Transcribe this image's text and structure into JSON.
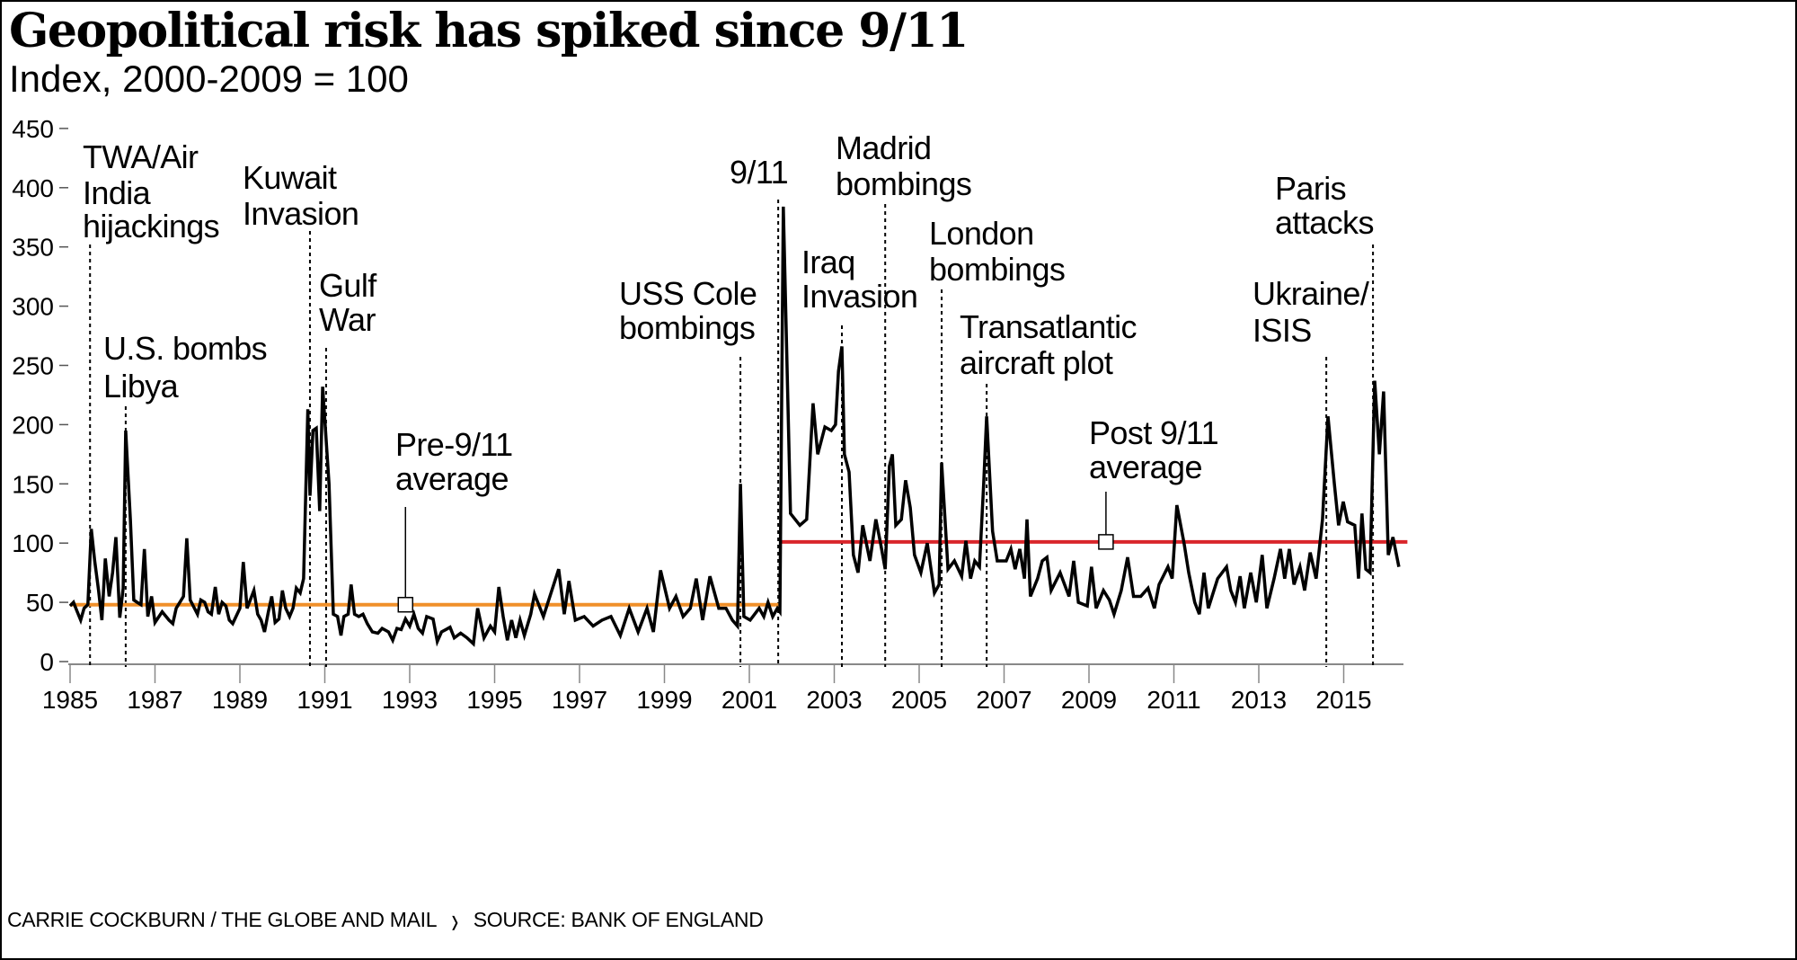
{
  "chart_data": {
    "type": "line",
    "title": "Geopolitical risk has spiked since 9/11",
    "subtitle": "Index, 2000-2009 = 100",
    "xlabel": "",
    "ylabel": "",
    "xlim": [
      1985,
      2016.5
    ],
    "ylim": [
      0,
      450
    ],
    "y_ticks": [
      "450",
      "400",
      "350",
      "300",
      "250",
      "200",
      "150",
      "100",
      "50",
      "0"
    ],
    "x_ticks": [
      "1985",
      "1987",
      "1989",
      "1991",
      "1993",
      "1995",
      "1997",
      "1999",
      "2001",
      "2003",
      "2005",
      "2007",
      "2009",
      "2011",
      "2013",
      "2015"
    ],
    "grid": false,
    "series": [
      {
        "color": "#000000",
        "points": [
          [
            1985.0,
            47
          ],
          [
            1985.08,
            50
          ],
          [
            1985.17,
            42
          ],
          [
            1985.25,
            35
          ],
          [
            1985.33,
            45
          ],
          [
            1985.42,
            48
          ],
          [
            1985.5,
            112
          ],
          [
            1985.58,
            85
          ],
          [
            1985.67,
            60
          ],
          [
            1985.75,
            35
          ],
          [
            1985.83,
            87
          ],
          [
            1985.92,
            55
          ],
          [
            1986.0,
            75
          ],
          [
            1986.08,
            105
          ],
          [
            1986.17,
            37
          ],
          [
            1986.25,
            62
          ],
          [
            1986.31,
            195
          ],
          [
            1986.42,
            120
          ],
          [
            1986.5,
            52
          ],
          [
            1986.58,
            50
          ],
          [
            1986.67,
            48
          ],
          [
            1986.75,
            95
          ],
          [
            1986.83,
            38
          ],
          [
            1986.92,
            55
          ],
          [
            1987.0,
            33
          ],
          [
            1987.17,
            42
          ],
          [
            1987.33,
            35
          ],
          [
            1987.42,
            32
          ],
          [
            1987.5,
            45
          ],
          [
            1987.67,
            55
          ],
          [
            1987.75,
            104
          ],
          [
            1987.83,
            52
          ],
          [
            1988.0,
            40
          ],
          [
            1988.08,
            52
          ],
          [
            1988.17,
            50
          ],
          [
            1988.25,
            42
          ],
          [
            1988.33,
            40
          ],
          [
            1988.42,
            63
          ],
          [
            1988.5,
            40
          ],
          [
            1988.58,
            50
          ],
          [
            1988.67,
            47
          ],
          [
            1988.75,
            35
          ],
          [
            1988.83,
            32
          ],
          [
            1989.0,
            45
          ],
          [
            1989.08,
            84
          ],
          [
            1989.17,
            45
          ],
          [
            1989.33,
            60
          ],
          [
            1989.42,
            40
          ],
          [
            1989.5,
            35
          ],
          [
            1989.58,
            25
          ],
          [
            1989.67,
            42
          ],
          [
            1989.75,
            55
          ],
          [
            1989.83,
            33
          ],
          [
            1989.92,
            36
          ],
          [
            1990.0,
            60
          ],
          [
            1990.08,
            45
          ],
          [
            1990.17,
            38
          ],
          [
            1990.25,
            45
          ],
          [
            1990.33,
            62
          ],
          [
            1990.42,
            58
          ],
          [
            1990.5,
            70
          ],
          [
            1990.6,
            213
          ],
          [
            1990.65,
            140
          ],
          [
            1990.72,
            195
          ],
          [
            1990.8,
            197
          ],
          [
            1990.88,
            127
          ],
          [
            1990.95,
            232
          ],
          [
            1991.1,
            150
          ],
          [
            1991.2,
            40
          ],
          [
            1991.3,
            38
          ],
          [
            1991.38,
            22
          ],
          [
            1991.45,
            38
          ],
          [
            1991.55,
            40
          ],
          [
            1991.62,
            65
          ],
          [
            1991.7,
            40
          ],
          [
            1991.8,
            38
          ],
          [
            1991.9,
            40
          ],
          [
            1992.0,
            32
          ],
          [
            1992.12,
            25
          ],
          [
            1992.25,
            24
          ],
          [
            1992.35,
            28
          ],
          [
            1992.5,
            25
          ],
          [
            1992.6,
            18
          ],
          [
            1992.7,
            28
          ],
          [
            1992.8,
            27
          ],
          [
            1992.9,
            36
          ],
          [
            1993.0,
            30
          ],
          [
            1993.1,
            40
          ],
          [
            1993.2,
            28
          ],
          [
            1993.3,
            24
          ],
          [
            1993.4,
            38
          ],
          [
            1993.55,
            36
          ],
          [
            1993.65,
            17
          ],
          [
            1993.75,
            25
          ],
          [
            1993.85,
            27
          ],
          [
            1993.95,
            29
          ],
          [
            1994.05,
            20
          ],
          [
            1994.2,
            24
          ],
          [
            1994.35,
            20
          ],
          [
            1994.5,
            15
          ],
          [
            1994.6,
            45
          ],
          [
            1994.75,
            20
          ],
          [
            1994.9,
            30
          ],
          [
            1995.0,
            25
          ],
          [
            1995.1,
            63
          ],
          [
            1995.2,
            38
          ],
          [
            1995.3,
            18
          ],
          [
            1995.4,
            35
          ],
          [
            1995.5,
            20
          ],
          [
            1995.6,
            35
          ],
          [
            1995.7,
            22
          ],
          [
            1995.85,
            40
          ],
          [
            1995.94,
            57
          ],
          [
            1996.15,
            38
          ],
          [
            1996.51,
            78
          ],
          [
            1996.64,
            40
          ],
          [
            1996.75,
            68
          ],
          [
            1996.9,
            35
          ],
          [
            1997.11,
            38
          ],
          [
            1997.32,
            30
          ],
          [
            1997.53,
            35
          ],
          [
            1997.74,
            38
          ],
          [
            1997.96,
            22
          ],
          [
            1998.17,
            45
          ],
          [
            1998.38,
            25
          ],
          [
            1998.59,
            45
          ],
          [
            1998.74,
            25
          ],
          [
            1998.91,
            77
          ],
          [
            1999.12,
            45
          ],
          [
            1999.27,
            55
          ],
          [
            1999.44,
            38
          ],
          [
            1999.61,
            45
          ],
          [
            1999.75,
            70
          ],
          [
            1999.9,
            35
          ],
          [
            2000.07,
            72
          ],
          [
            2000.28,
            45
          ],
          [
            2000.45,
            45
          ],
          [
            2000.6,
            35
          ],
          [
            2000.72,
            30
          ],
          [
            2000.79,
            150
          ],
          [
            2000.87,
            38
          ],
          [
            2001.02,
            35
          ],
          [
            2001.23,
            45
          ],
          [
            2001.34,
            38
          ],
          [
            2001.44,
            50
          ],
          [
            2001.55,
            38
          ],
          [
            2001.66,
            45
          ],
          [
            2001.72,
            42
          ],
          [
            2001.8,
            384
          ],
          [
            2001.97,
            125
          ],
          [
            2002.19,
            115
          ],
          [
            2002.35,
            120
          ],
          [
            2002.5,
            218
          ],
          [
            2002.61,
            175
          ],
          [
            2002.78,
            198
          ],
          [
            2002.93,
            195
          ],
          [
            2003.03,
            200
          ],
          [
            2003.1,
            245
          ],
          [
            2003.18,
            266
          ],
          [
            2003.24,
            175
          ],
          [
            2003.35,
            160
          ],
          [
            2003.45,
            90
          ],
          [
            2003.56,
            75
          ],
          [
            2003.67,
            115
          ],
          [
            2003.84,
            85
          ],
          [
            2003.98,
            120
          ],
          [
            2004.09,
            100
          ],
          [
            2004.2,
            78
          ],
          [
            2004.3,
            165
          ],
          [
            2004.37,
            175
          ],
          [
            2004.45,
            115
          ],
          [
            2004.58,
            120
          ],
          [
            2004.68,
            153
          ],
          [
            2004.79,
            130
          ],
          [
            2004.89,
            90
          ],
          [
            2005.04,
            75
          ],
          [
            2005.19,
            100
          ],
          [
            2005.36,
            58
          ],
          [
            2005.47,
            65
          ],
          [
            2005.53,
            168
          ],
          [
            2005.68,
            78
          ],
          [
            2005.83,
            85
          ],
          [
            2006.0,
            72
          ],
          [
            2006.1,
            102
          ],
          [
            2006.21,
            70
          ],
          [
            2006.31,
            85
          ],
          [
            2006.42,
            80
          ],
          [
            2006.52,
            150
          ],
          [
            2006.59,
            207
          ],
          [
            2006.73,
            110
          ],
          [
            2006.84,
            85
          ],
          [
            2007.05,
            85
          ],
          [
            2007.16,
            95
          ],
          [
            2007.26,
            78
          ],
          [
            2007.37,
            95
          ],
          [
            2007.48,
            70
          ],
          [
            2007.54,
            120
          ],
          [
            2007.62,
            55
          ],
          [
            2007.79,
            70
          ],
          [
            2007.9,
            85
          ],
          [
            2008.01,
            88
          ],
          [
            2008.11,
            60
          ],
          [
            2008.32,
            75
          ],
          [
            2008.53,
            55
          ],
          [
            2008.64,
            85
          ],
          [
            2008.75,
            50
          ],
          [
            2008.96,
            47
          ],
          [
            2009.06,
            80
          ],
          [
            2009.17,
            45
          ],
          [
            2009.34,
            60
          ],
          [
            2009.48,
            52
          ],
          [
            2009.59,
            40
          ],
          [
            2009.76,
            60
          ],
          [
            2009.91,
            88
          ],
          [
            2010.05,
            55
          ],
          [
            2010.22,
            55
          ],
          [
            2010.39,
            62
          ],
          [
            2010.54,
            45
          ],
          [
            2010.65,
            65
          ],
          [
            2010.86,
            80
          ],
          [
            2010.96,
            70
          ],
          [
            2011.07,
            132
          ],
          [
            2011.24,
            100
          ],
          [
            2011.35,
            75
          ],
          [
            2011.49,
            50
          ],
          [
            2011.6,
            40
          ],
          [
            2011.71,
            75
          ],
          [
            2011.81,
            45
          ],
          [
            2012.03,
            70
          ],
          [
            2012.24,
            80
          ],
          [
            2012.34,
            60
          ],
          [
            2012.45,
            50
          ],
          [
            2012.56,
            72
          ],
          [
            2012.66,
            45
          ],
          [
            2012.81,
            75
          ],
          [
            2012.94,
            50
          ],
          [
            2013.08,
            90
          ],
          [
            2013.19,
            45
          ],
          [
            2013.36,
            70
          ],
          [
            2013.51,
            95
          ],
          [
            2013.61,
            70
          ],
          [
            2013.72,
            95
          ],
          [
            2013.83,
            65
          ],
          [
            2013.97,
            80
          ],
          [
            2014.08,
            60
          ],
          [
            2014.21,
            92
          ],
          [
            2014.35,
            70
          ],
          [
            2014.5,
            120
          ],
          [
            2014.63,
            207
          ],
          [
            2014.78,
            150
          ],
          [
            2014.88,
            115
          ],
          [
            2014.99,
            135
          ],
          [
            2015.09,
            118
          ],
          [
            2015.26,
            115
          ],
          [
            2015.35,
            70
          ],
          [
            2015.43,
            125
          ],
          [
            2015.52,
            78
          ],
          [
            2015.62,
            75
          ],
          [
            2015.73,
            237
          ],
          [
            2015.84,
            175
          ],
          [
            2015.94,
            228
          ],
          [
            2016.05,
            90
          ],
          [
            2016.16,
            105
          ],
          [
            2016.3,
            80
          ]
        ]
      }
    ],
    "averages": [
      {
        "label": [
          "Pre-9/11",
          "average"
        ],
        "value": 48,
        "from": 1985,
        "to": 2001.7,
        "marker_at": 1992.9,
        "color": "#f0902a"
      },
      {
        "label": [
          "Post 9/11",
          "average"
        ],
        "value": 101,
        "from": 2001.7,
        "to": 2016.5,
        "marker_at": 2009.4,
        "color": "#d9262b"
      }
    ],
    "annotations": [
      {
        "lines": [
          "TWA/Air",
          "India",
          "hijackings"
        ],
        "x": 1985.47
      },
      {
        "lines": [
          "U.S. bombs",
          "Libya"
        ],
        "x": 1986.31
      },
      {
        "lines": [
          "Kuwait",
          "Invasion"
        ],
        "x": 1990.65
      },
      {
        "lines": [
          "Gulf",
          "War"
        ],
        "x": 1991.03
      },
      {
        "lines": [
          "USS Cole",
          "bombings"
        ],
        "x": 2000.79
      },
      {
        "lines": [
          "9/11"
        ],
        "x": 2001.68
      },
      {
        "lines": [
          "Iraq",
          "Invasion"
        ],
        "x": 2003.18
      },
      {
        "lines": [
          "Madrid",
          "bombings"
        ],
        "x": 2004.2
      },
      {
        "lines": [
          "London",
          "bombings"
        ],
        "x": 2005.53
      },
      {
        "lines": [
          "Transatlantic",
          "aircraft plot"
        ],
        "x": 2006.59
      },
      {
        "lines": [
          "Ukraine/",
          "ISIS"
        ],
        "x": 2014.59
      },
      {
        "lines": [
          "Paris",
          "attacks"
        ],
        "x": 2015.69
      }
    ]
  },
  "footer": {
    "credit": "CARRIE COCKBURN / THE GLOBE AND MAIL",
    "separator": "❭",
    "source": "SOURCE: BANK OF ENGLAND"
  }
}
